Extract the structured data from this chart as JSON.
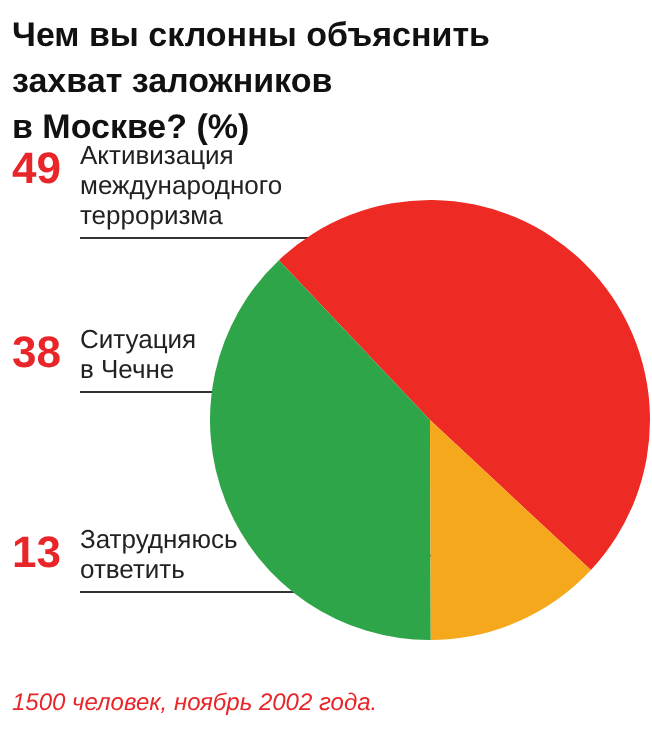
{
  "chart_data": {
    "type": "pie",
    "title": "Чем вы склонны объяснить захват заложников в Москве? (%)",
    "categories": [
      "Активизация международного терроризма",
      "Ситуация в Чечне",
      "Затрудняюсь ответить"
    ],
    "values": [
      49,
      38,
      13
    ],
    "colors": [
      "#ee2a24",
      "#2ea548",
      "#f6a81c"
    ],
    "data_labels": true,
    "annotations": [
      "1500 человек, ноябрь 2002 года."
    ]
  }
}
